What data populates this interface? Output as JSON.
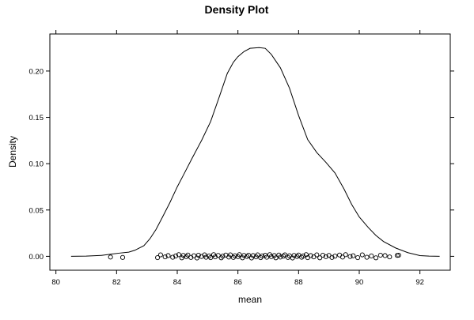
{
  "chart_data": {
    "type": "density",
    "title": "Density Plot",
    "xlabel": "mean",
    "ylabel": "Density",
    "xlim": [
      79.8,
      93.0
    ],
    "ylim": [
      -0.015,
      0.24
    ],
    "x_ticks": [
      "80",
      "82",
      "84",
      "86",
      "88",
      "90",
      "92"
    ],
    "y_ticks": [
      "0.00",
      "0.05",
      "0.10",
      "0.15",
      "0.20"
    ],
    "grid": false,
    "legend": "none",
    "line_color": "#000000",
    "point_color": "#000000",
    "curve": {
      "x": [
        80.5,
        81.0,
        81.5,
        81.85,
        82.1,
        82.4,
        82.6,
        82.9,
        83.1,
        83.3,
        83.5,
        83.75,
        84.0,
        84.2,
        84.5,
        84.8,
        85.1,
        85.4,
        85.65,
        85.85,
        86.0,
        86.2,
        86.4,
        86.7,
        86.9,
        87.1,
        87.4,
        87.7,
        88.0,
        88.3,
        88.6,
        88.9,
        89.2,
        89.5,
        89.75,
        90.0,
        90.3,
        90.55,
        90.8,
        91.2,
        91.6,
        92.0,
        92.3,
        92.65
      ],
      "y": [
        0.0,
        0.0002,
        0.001,
        0.0025,
        0.0035,
        0.0045,
        0.0065,
        0.0115,
        0.019,
        0.029,
        0.0415,
        0.0575,
        0.075,
        0.0875,
        0.1065,
        0.125,
        0.1455,
        0.1735,
        0.1975,
        0.2095,
        0.2155,
        0.221,
        0.2245,
        0.2253,
        0.2245,
        0.218,
        0.2035,
        0.1815,
        0.152,
        0.126,
        0.112,
        0.1015,
        0.09,
        0.0725,
        0.056,
        0.0425,
        0.031,
        0.0225,
        0.016,
        0.009,
        0.004,
        0.0008,
        0.0002,
        0.0
      ]
    },
    "rug_points": {
      "x": [
        81.8,
        82.2,
        83.35,
        83.45,
        83.6,
        83.7,
        83.85,
        83.95,
        84.05,
        84.15,
        84.2,
        84.3,
        84.35,
        84.45,
        84.55,
        84.65,
        84.7,
        84.8,
        84.9,
        84.95,
        85.05,
        85.1,
        85.2,
        85.25,
        85.35,
        85.45,
        85.5,
        85.6,
        85.7,
        85.75,
        85.85,
        85.9,
        86.0,
        86.05,
        86.15,
        86.2,
        86.3,
        86.35,
        86.45,
        86.5,
        86.6,
        86.65,
        86.75,
        86.8,
        86.9,
        86.95,
        87.05,
        87.1,
        87.2,
        87.25,
        87.35,
        87.4,
        87.5,
        87.55,
        87.65,
        87.7,
        87.8,
        87.85,
        87.95,
        88.0,
        88.1,
        88.15,
        88.25,
        88.3,
        88.4,
        88.5,
        88.6,
        88.7,
        88.8,
        88.9,
        89.0,
        89.1,
        89.2,
        89.35,
        89.45,
        89.55,
        89.7,
        89.8,
        89.95,
        90.1,
        90.25,
        90.4,
        90.55,
        90.7,
        90.85,
        91.0,
        91.25,
        91.3
      ],
      "y": [
        0.0,
        0.0,
        0.0,
        0.0,
        0.0,
        0.0,
        0.0,
        0.0,
        0.0,
        0.0,
        0.0,
        0.0,
        0.0,
        0.0,
        0.0,
        0.0,
        0.0,
        0.0,
        0.0,
        0.0,
        0.0,
        0.0,
        0.0,
        0.0,
        0.0,
        0.0,
        0.0,
        0.0,
        0.0,
        0.0,
        0.0,
        0.0,
        0.0,
        0.0,
        0.0,
        0.0,
        0.0,
        0.0,
        0.0,
        0.0,
        0.0,
        0.0,
        0.0,
        0.0,
        0.0,
        0.0,
        0.0,
        0.0,
        0.0,
        0.0,
        0.0,
        0.0,
        0.0,
        0.0,
        0.0,
        0.0,
        0.0,
        0.0,
        0.0,
        0.0,
        0.0,
        0.0,
        0.0,
        0.0,
        0.0,
        0.0,
        0.0,
        0.0,
        0.0,
        0.0,
        0.0,
        0.0,
        0.0,
        0.0,
        0.0,
        0.0,
        0.0,
        0.0,
        0.0,
        0.0,
        0.0,
        0.0,
        0.0,
        0.0,
        0.0,
        0.0,
        0.0,
        0.0
      ],
      "jitter": [
        -0.0008,
        -0.0012,
        -0.0014,
        0.0016,
        -0.0006,
        0.0008,
        -0.001,
        0.0004,
        0.0018,
        -0.0016,
        0.001,
        -0.0004,
        0.0014,
        -0.0012,
        0.0006,
        -0.0018,
        0.0012,
        -0.0002,
        0.0016,
        -0.001,
        0.0004,
        -0.0014,
        0.0018,
        -0.0006,
        0.001,
        -0.0016,
        0.0002,
        0.0014,
        -0.0008,
        0.0016,
        -0.0012,
        0.0006,
        -0.0004,
        0.0018,
        -0.0016,
        0.001,
        -0.0002,
        0.0012,
        -0.0018,
        0.0008,
        -0.0006,
        0.0016,
        -0.0014,
        0.0004,
        0.0012,
        -0.001,
        0.0018,
        -0.0004,
        0.0008,
        -0.0016,
        0.0014,
        -0.0008,
        0.0002,
        0.0016,
        -0.0012,
        0.0006,
        -0.0018,
        0.001,
        -0.0002,
        0.0014,
        -0.001,
        0.0004,
        0.0018,
        -0.0014,
        0.0008,
        -0.0006,
        0.0016,
        -0.0016,
        0.0012,
        -0.0004,
        0.001,
        -0.0012,
        0.0002,
        0.0014,
        -0.0008,
        0.0018,
        -0.0002,
        0.0006,
        -0.0014,
        0.0016,
        -0.001,
        0.0004,
        -0.0016,
        0.0012,
        0.0008,
        -0.0006,
        0.001,
        0.0012
      ]
    }
  }
}
